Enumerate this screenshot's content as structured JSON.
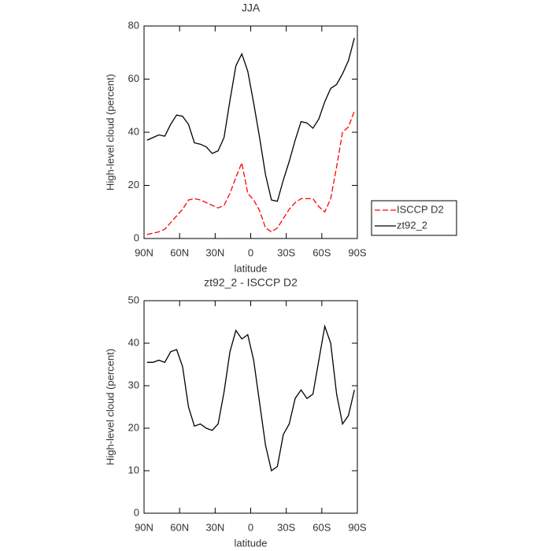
{
  "chart_data": [
    {
      "type": "line",
      "title": "JJA",
      "x_label": "latitude",
      "y_label": "High-level cloud (percent)",
      "x": [
        87.5,
        82.5,
        77.5,
        72.5,
        67.5,
        62.5,
        57.5,
        52.5,
        47.5,
        42.5,
        37.5,
        32.5,
        27.5,
        22.5,
        17.5,
        12.5,
        7.5,
        2.5,
        -2.5,
        -7.5,
        -12.5,
        -17.5,
        -22.5,
        -27.5,
        -32.5,
        -37.5,
        -42.5,
        -47.5,
        -52.5,
        -57.5,
        -62.5,
        -67.5,
        -72.5,
        -77.5,
        -82.5,
        -87.5
      ],
      "series": [
        {
          "name": "ISCCP D2",
          "color": "#ff0000",
          "line_style": "dashed",
          "values": [
            1.5,
            2,
            2.5,
            3.5,
            6,
            8.5,
            11,
            14.5,
            15,
            14.5,
            13.5,
            12.5,
            11.5,
            12.5,
            17,
            23,
            28.5,
            17,
            14.5,
            10.5,
            4,
            2.5,
            4,
            7.5,
            11,
            13.5,
            15,
            15,
            15,
            12,
            10,
            15,
            27,
            40,
            42,
            48
          ]
        },
        {
          "name": "zt92_2",
          "color": "#000000",
          "line_style": "solid",
          "values": [
            37,
            38,
            39,
            38.5,
            43,
            46.5,
            46,
            43,
            36,
            35.5,
            34.5,
            32,
            33,
            38,
            52,
            65,
            69.5,
            63,
            51,
            38,
            24,
            14.5,
            14,
            22,
            29,
            37,
            44,
            43.5,
            41.5,
            45,
            51.5,
            56.5,
            58,
            62,
            67,
            75.5
          ]
        }
      ],
      "xlim": [
        90,
        -90
      ],
      "xticks": [
        {
          "value": 90,
          "label": "90N"
        },
        {
          "value": 60,
          "label": "60N"
        },
        {
          "value": 30,
          "label": "30N"
        },
        0,
        {
          "value": -30,
          "label": "30S"
        },
        {
          "value": -60,
          "label": "60S"
        },
        {
          "value": -90,
          "label": "90S"
        }
      ],
      "ylim": [
        0,
        80
      ],
      "yticks": [
        0,
        20,
        40,
        60,
        80
      ],
      "legend": "right"
    },
    {
      "type": "line",
      "title": "zt92_2 - ISCCP D2",
      "x_label": "latitude",
      "y_label": "High-level cloud (percent)",
      "x": [
        87.5,
        82.5,
        77.5,
        72.5,
        67.5,
        62.5,
        57.5,
        52.5,
        47.5,
        42.5,
        37.5,
        32.5,
        27.5,
        22.5,
        17.5,
        12.5,
        7.5,
        2.5,
        -2.5,
        -7.5,
        -12.5,
        -17.5,
        -22.5,
        -27.5,
        -32.5,
        -37.5,
        -42.5,
        -47.5,
        -52.5,
        -57.5,
        -62.5,
        -67.5,
        -72.5,
        -77.5,
        -82.5,
        -87.5
      ],
      "series": [
        {
          "color": "#000000",
          "line_style": "solid",
          "values": [
            35.5,
            35.5,
            36,
            35.5,
            38,
            38.5,
            34.5,
            25,
            20.5,
            21,
            20,
            19.5,
            21,
            28.5,
            38,
            43,
            41,
            42,
            36,
            26,
            16,
            10,
            11,
            18.5,
            21,
            27,
            29,
            27,
            28,
            36,
            44,
            40,
            28,
            21,
            23,
            29
          ]
        }
      ],
      "xlim": [
        90,
        -90
      ],
      "xticks": [
        {
          "value": 90,
          "label": "90N"
        },
        {
          "value": 60,
          "label": "60N"
        },
        {
          "value": 30,
          "label": "30N"
        },
        0,
        {
          "value": -30,
          "label": "30S"
        },
        {
          "value": -60,
          "label": "60S"
        },
        {
          "value": -90,
          "label": "90S"
        }
      ],
      "ylim": [
        0,
        50
      ],
      "yticks": [
        0,
        10,
        20,
        30,
        40,
        50
      ]
    }
  ]
}
